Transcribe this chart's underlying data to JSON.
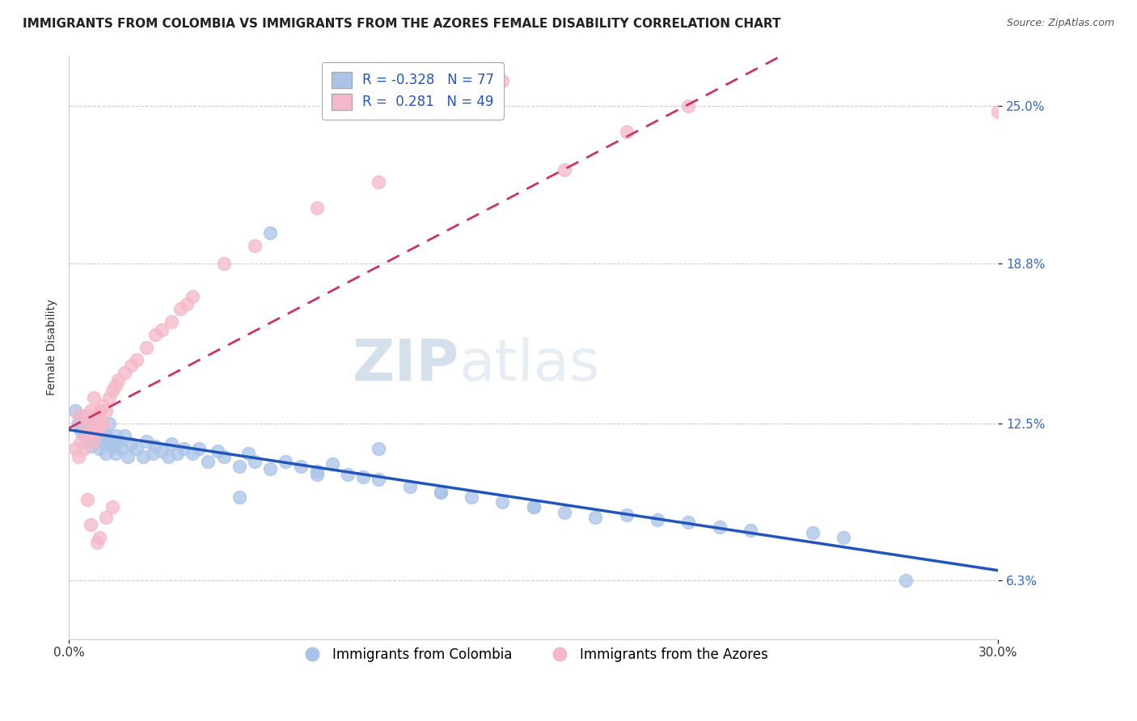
{
  "title": "IMMIGRANTS FROM COLOMBIA VS IMMIGRANTS FROM THE AZORES FEMALE DISABILITY CORRELATION CHART",
  "source": "Source: ZipAtlas.com",
  "ylabel": "Female Disability",
  "xlim": [
    0.0,
    0.3
  ],
  "ylim": [
    0.04,
    0.27
  ],
  "yticks": [
    0.063,
    0.125,
    0.188,
    0.25
  ],
  "ytick_labels": [
    "6.3%",
    "12.5%",
    "18.8%",
    "25.0%"
  ],
  "xticks": [
    0.0,
    0.3
  ],
  "xtick_labels": [
    "0.0%",
    "30.0%"
  ],
  "grid_color": "#cccccc",
  "background_color": "#ffffff",
  "colombia_color": "#aac4e8",
  "azores_color": "#f5b8c8",
  "colombia_line_color": "#2255bb",
  "azores_line_color": "#cc3366",
  "azores_line_dashed": true,
  "R_colombia": -0.328,
  "N_colombia": 77,
  "R_azores": 0.281,
  "N_azores": 49,
  "legend_label_colombia": "Immigrants from Colombia",
  "legend_label_azores": "Immigrants from the Azores",
  "colombia_x": [
    0.002,
    0.003,
    0.004,
    0.004,
    0.005,
    0.005,
    0.006,
    0.006,
    0.007,
    0.007,
    0.008,
    0.008,
    0.009,
    0.009,
    0.01,
    0.01,
    0.011,
    0.011,
    0.012,
    0.012,
    0.013,
    0.013,
    0.014,
    0.015,
    0.015,
    0.016,
    0.017,
    0.018,
    0.019,
    0.02,
    0.022,
    0.024,
    0.025,
    0.027,
    0.028,
    0.03,
    0.032,
    0.033,
    0.035,
    0.037,
    0.04,
    0.042,
    0.045,
    0.048,
    0.05,
    0.055,
    0.058,
    0.06,
    0.065,
    0.07,
    0.075,
    0.08,
    0.085,
    0.09,
    0.095,
    0.1,
    0.11,
    0.12,
    0.13,
    0.14,
    0.15,
    0.16,
    0.17,
    0.18,
    0.19,
    0.2,
    0.21,
    0.22,
    0.24,
    0.25,
    0.055,
    0.065,
    0.08,
    0.1,
    0.12,
    0.15,
    0.27
  ],
  "colombia_y": [
    0.13,
    0.125,
    0.128,
    0.122,
    0.127,
    0.12,
    0.124,
    0.118,
    0.122,
    0.116,
    0.125,
    0.12,
    0.118,
    0.124,
    0.12,
    0.115,
    0.122,
    0.118,
    0.12,
    0.113,
    0.118,
    0.125,
    0.116,
    0.12,
    0.113,
    0.118,
    0.115,
    0.12,
    0.112,
    0.117,
    0.115,
    0.112,
    0.118,
    0.113,
    0.116,
    0.114,
    0.112,
    0.117,
    0.113,
    0.115,
    0.113,
    0.115,
    0.11,
    0.114,
    0.112,
    0.108,
    0.113,
    0.11,
    0.107,
    0.11,
    0.108,
    0.106,
    0.109,
    0.105,
    0.104,
    0.103,
    0.1,
    0.098,
    0.096,
    0.094,
    0.092,
    0.09,
    0.088,
    0.089,
    0.087,
    0.086,
    0.084,
    0.083,
    0.082,
    0.08,
    0.096,
    0.2,
    0.105,
    0.115,
    0.098,
    0.092,
    0.063
  ],
  "azores_x": [
    0.002,
    0.003,
    0.003,
    0.004,
    0.005,
    0.005,
    0.006,
    0.006,
    0.007,
    0.007,
    0.008,
    0.008,
    0.008,
    0.009,
    0.009,
    0.01,
    0.01,
    0.011,
    0.011,
    0.012,
    0.013,
    0.014,
    0.015,
    0.016,
    0.018,
    0.02,
    0.022,
    0.025,
    0.028,
    0.03,
    0.033,
    0.036,
    0.038,
    0.04,
    0.05,
    0.06,
    0.08,
    0.1,
    0.006,
    0.007,
    0.009,
    0.01,
    0.012,
    0.014,
    0.16,
    0.18,
    0.2,
    0.14,
    0.3
  ],
  "azores_y": [
    0.115,
    0.112,
    0.128,
    0.118,
    0.125,
    0.115,
    0.128,
    0.12,
    0.13,
    0.122,
    0.125,
    0.135,
    0.118,
    0.128,
    0.122,
    0.13,
    0.124,
    0.132,
    0.125,
    0.13,
    0.135,
    0.138,
    0.14,
    0.142,
    0.145,
    0.148,
    0.15,
    0.155,
    0.16,
    0.162,
    0.165,
    0.17,
    0.172,
    0.175,
    0.188,
    0.195,
    0.21,
    0.22,
    0.095,
    0.085,
    0.078,
    0.08,
    0.088,
    0.092,
    0.225,
    0.24,
    0.25,
    0.26,
    0.248
  ],
  "watermark_zip": "ZIP",
  "watermark_atlas": "atlas",
  "title_fontsize": 11,
  "axis_fontsize": 10,
  "legend_fontsize": 12
}
